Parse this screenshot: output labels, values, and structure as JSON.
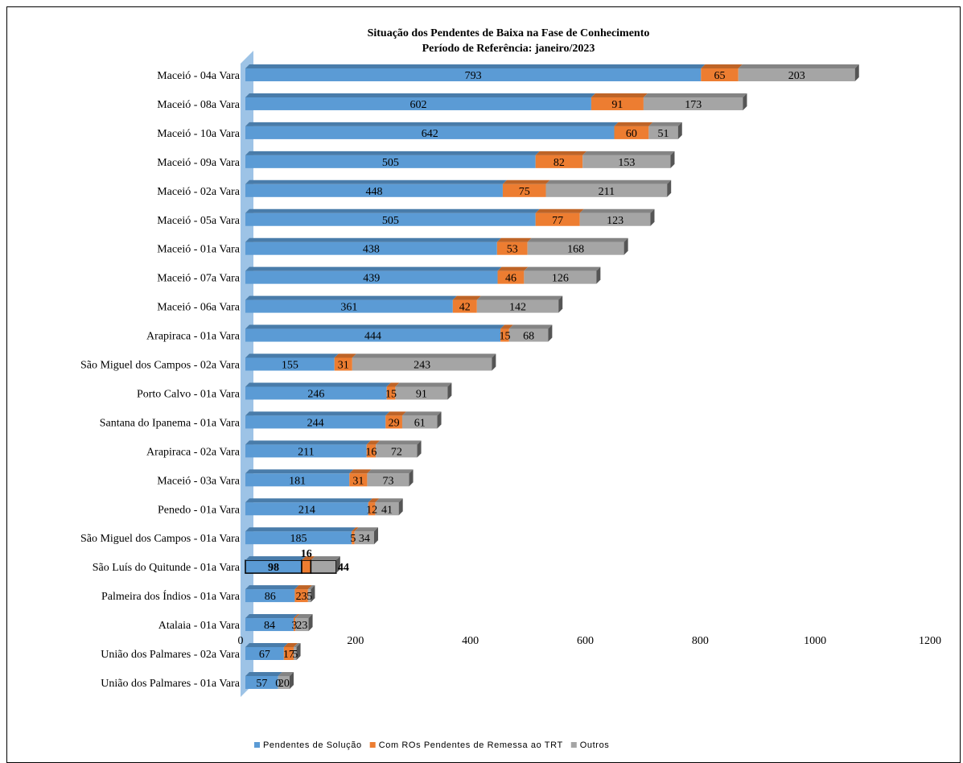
{
  "chart_data": {
    "type": "bar",
    "orientation": "horizontal",
    "stacked": true,
    "title": "Situação dos Pendentes de Baixa na Fase de Conhecimento",
    "subtitle": "Período de Referência: janeiro/2023",
    "xlim": [
      0,
      1200
    ],
    "xticks": [
      "0",
      "200",
      "400",
      "600",
      "800",
      "1000",
      "1200"
    ],
    "grid": false,
    "legend_position": "bottom",
    "categories": [
      "Maceió - 04a Vara",
      "Maceió - 08a Vara",
      "Maceió - 10a Vara",
      "Maceió - 09a Vara",
      "Maceió - 02a Vara",
      "Maceió - 05a Vara",
      "Maceió - 01a Vara",
      "Maceió - 07a Vara",
      "Maceió - 06a Vara",
      "Arapiraca - 01a Vara",
      "São Miguel dos Campos - 02a Vara",
      "Porto Calvo - 01a Vara",
      "Santana do Ipanema - 01a Vara",
      "Arapiraca - 02a Vara",
      "Maceió - 03a Vara",
      "Penedo - 01a Vara",
      "São Miguel dos Campos - 01a Vara",
      "São Luís do Quitunde - 01a Vara",
      "Palmeira dos Índios - 01a Vara",
      "Atalaia - 01a Vara",
      "União dos Palmares - 02a Vara",
      "União dos Palmares - 01a Vara"
    ],
    "series": [
      {
        "name": "Pendentes de Solução",
        "color": "#5b9bd5",
        "values": [
          793,
          602,
          642,
          505,
          448,
          505,
          438,
          439,
          361,
          444,
          155,
          246,
          244,
          211,
          181,
          214,
          185,
          98,
          86,
          84,
          67,
          57
        ]
      },
      {
        "name": "Com ROs Pendentes de Remessa ao TRT",
        "color": "#ed7d31",
        "values": [
          65,
          91,
          60,
          82,
          75,
          77,
          53,
          46,
          42,
          15,
          31,
          15,
          29,
          16,
          31,
          12,
          5,
          16,
          23,
          3,
          17,
          0
        ]
      },
      {
        "name": "Outros",
        "color": "#a5a5a5",
        "values": [
          203,
          173,
          51,
          153,
          211,
          123,
          168,
          126,
          142,
          68,
          243,
          91,
          61,
          72,
          73,
          41,
          34,
          44,
          5,
          23,
          5,
          20
        ]
      }
    ],
    "highlighted_category": "São Luís do Quitunde - 01a Vara",
    "wall_color": "#9dc3e6"
  }
}
